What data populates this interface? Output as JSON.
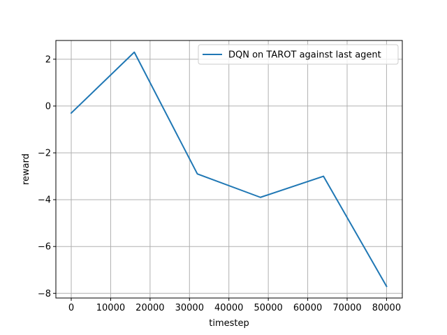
{
  "chart_data": {
    "type": "line",
    "title": "",
    "xlabel": "timestep",
    "ylabel": "reward",
    "xlim": [
      -3900,
      84000
    ],
    "ylim": [
      -8.2,
      2.8
    ],
    "xticks": [
      0,
      10000,
      20000,
      30000,
      40000,
      50000,
      60000,
      70000,
      80000
    ],
    "yticks": [
      -8,
      -6,
      -4,
      -2,
      0,
      2
    ],
    "x_tick_labels": [
      "0",
      "10000",
      "20000",
      "30000",
      "40000",
      "50000",
      "60000",
      "70000",
      "80000"
    ],
    "y_tick_labels": [
      "−8",
      "−6",
      "−4",
      "−2",
      "0",
      "2"
    ],
    "grid": true,
    "legend_position": "upper right",
    "series": [
      {
        "name": "DQN on TAROT against last agent",
        "color": "#1f77b4",
        "x": [
          0,
          16000,
          32000,
          48000,
          64000,
          80000
        ],
        "y": [
          -0.3,
          2.3,
          -2.9,
          -3.9,
          -3.0,
          -7.7
        ]
      }
    ]
  }
}
